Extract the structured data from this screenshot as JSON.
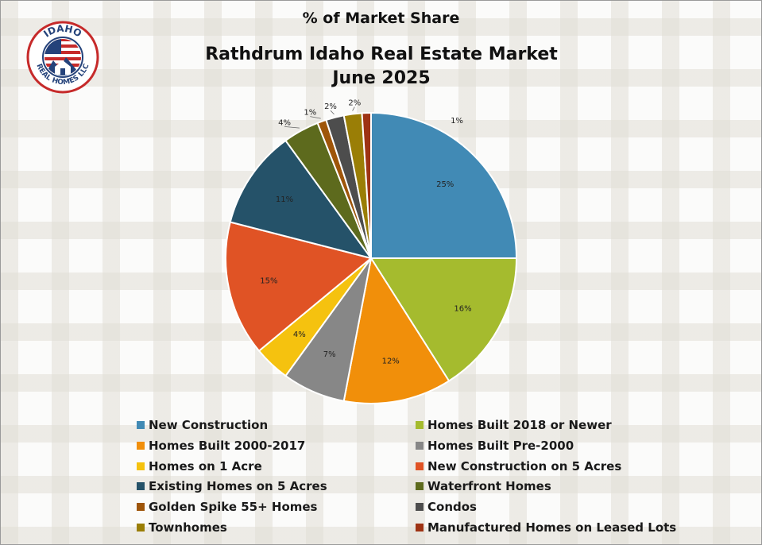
{
  "header": {
    "subtitle": "% of Market Share",
    "title_line1": "Rathdrum Idaho Real Estate Market",
    "title_line2": "June 2025"
  },
  "logo": {
    "top_text": "IDAHO",
    "bottom_text": "REAL HOMES LLC",
    "colors": {
      "ring": "#c62a2a",
      "blue": "#24427a",
      "flag_red": "#c62a2a"
    }
  },
  "chart_data": {
    "type": "pie",
    "title": "% of Market Share",
    "subtitle": "Rathdrum Idaho Real Estate Market June 2025",
    "legend_placement": "bottom",
    "slices": [
      {
        "label": "New Construction",
        "value": 25,
        "display": "25%",
        "color": "#418ab5"
      },
      {
        "label": "Homes Built 2018 or Newer",
        "value": 16,
        "display": "16%",
        "color": "#a5bb2e"
      },
      {
        "label": "Homes Built 2000-2017",
        "value": 12,
        "display": "12%",
        "color": "#f18f0a"
      },
      {
        "label": "Homes Built Pre-2000",
        "value": 7,
        "display": "7%",
        "color": "#878787"
      },
      {
        "label": "Homes on 1 Acre",
        "value": 4,
        "display": "4%",
        "color": "#f5c20f"
      },
      {
        "label": "New Construction on 5 Acres",
        "value": 15,
        "display": "15%",
        "color": "#e05325"
      },
      {
        "label": "Existing Homes on 5 Acres",
        "value": 11,
        "display": "11%",
        "color": "#255269"
      },
      {
        "label": "Waterfront Homes",
        "value": 4,
        "display": "4%",
        "color": "#5d6a1d"
      },
      {
        "label": "Golden Spike 55+ Homes",
        "value": 1,
        "display": "1%",
        "color": "#9e5509"
      },
      {
        "label": "Condos",
        "value": 2,
        "display": "2%",
        "color": "#4d4d4d"
      },
      {
        "label": "Townhomes",
        "value": 2,
        "display": "2%",
        "color": "#9a7e06"
      },
      {
        "label": "Manufactured Homes on Leased Lots",
        "value": 1,
        "display": "1%",
        "color": "#9e3314"
      }
    ]
  }
}
